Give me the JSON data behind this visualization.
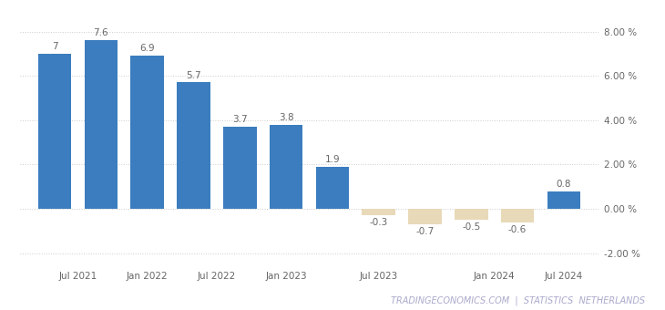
{
  "x_positions": [
    0,
    1,
    2,
    3,
    4,
    5,
    6,
    7,
    8,
    9,
    10,
    11
  ],
  "values": [
    7.0,
    7.6,
    6.9,
    5.7,
    3.7,
    3.8,
    1.9,
    -0.3,
    -0.7,
    -0.5,
    -0.6,
    0.8
  ],
  "bar_color_blue": "#3b7dbf",
  "bar_color_tan": "#e8d9b8",
  "xtick_labels": [
    "Jul 2021",
    "Jan 2022",
    "Jul 2022",
    "Jan 2023",
    "Jul 2023",
    "Jan 2024",
    "Jul 2024"
  ],
  "ytick_values": [
    -2.0,
    0.0,
    2.0,
    4.0,
    6.0,
    8.0
  ],
  "ytick_labels": [
    "-2.00 %",
    "0.00 %",
    "2.00 %",
    "4.00 %",
    "6.00 %",
    "8.00 %"
  ],
  "ylim_bottom": -2.6,
  "ylim_top": 9.0,
  "footer": "TRADINGECONOMICS.COM  |  STATISTICS  NETHERLANDS",
  "background_color": "#ffffff",
  "grid_color": "#cccccc",
  "label_fontsize": 7.5,
  "bar_label_fontsize": 7.5,
  "footer_fontsize": 7.0,
  "bar_width": 0.72,
  "xlim_left": -0.75,
  "xlim_right": 11.75
}
